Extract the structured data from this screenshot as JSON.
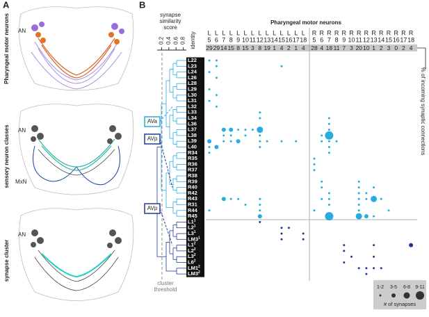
{
  "panels": {
    "a": "A",
    "b": "B"
  },
  "panel_a": {
    "titles": [
      "Pharyngeal motor neurons",
      "sensory neuron classes",
      "synapse cluster"
    ],
    "an": "AN",
    "mxn": "MxN"
  },
  "similarity": {
    "title": [
      "synapse",
      "similarity",
      "score"
    ],
    "ticks": [
      0.2,
      0.4,
      0.6,
      0.8
    ],
    "threshold": [
      "cluster",
      "threshold"
    ]
  },
  "identity": "identity",
  "header": "Pharyngeal motor neurons",
  "columns": [
    {
      "side": "L",
      "num": 5,
      "count": 29
    },
    {
      "side": "L",
      "num": 6,
      "count": 29
    },
    {
      "side": "L",
      "num": 7,
      "count": 14
    },
    {
      "side": "L",
      "num": 8,
      "count": 15
    },
    {
      "side": "L",
      "num": 9,
      "count": 8
    },
    {
      "side": "L",
      "num": 10,
      "count": 15
    },
    {
      "side": "L",
      "num": 11,
      "count": 3
    },
    {
      "side": "L",
      "num": 12,
      "count": 8
    },
    {
      "side": "L",
      "num": 13,
      "count": 19
    },
    {
      "side": "L",
      "num": 14,
      "count": 1
    },
    {
      "side": "L",
      "num": 15,
      "count": 4
    },
    {
      "side": "L",
      "num": 16,
      "count": 2
    },
    {
      "side": "L",
      "num": 17,
      "count": 1
    },
    {
      "side": "L",
      "num": 18,
      "count": 4
    },
    {
      "side": "R",
      "num": 5,
      "count": 28
    },
    {
      "side": "R",
      "num": 6,
      "count": 4
    },
    {
      "side": "R",
      "num": 7,
      "count": 18
    },
    {
      "side": "R",
      "num": 8,
      "count": 11
    },
    {
      "side": "R",
      "num": 9,
      "count": 7
    },
    {
      "side": "R",
      "num": 10,
      "count": 3
    },
    {
      "side": "R",
      "num": 11,
      "count": 20
    },
    {
      "side": "R",
      "num": 12,
      "count": 10
    },
    {
      "side": "R",
      "num": 13,
      "count": 1
    },
    {
      "side": "R",
      "num": 14,
      "count": 2
    },
    {
      "side": "R",
      "num": 15,
      "count": 3
    },
    {
      "side": "R",
      "num": 16,
      "count": 0
    },
    {
      "side": "R",
      "num": 17,
      "count": 2
    },
    {
      "side": "R",
      "num": 18,
      "count": 4
    }
  ],
  "rows": [
    {
      "label": "L22"
    },
    {
      "label": "L23"
    },
    {
      "label": "L24"
    },
    {
      "label": "L26"
    },
    {
      "label": "L28"
    },
    {
      "label": "L29"
    },
    {
      "label": "L30"
    },
    {
      "label": "L31"
    },
    {
      "label": "L32"
    },
    {
      "label": "L33"
    },
    {
      "label": "L34"
    },
    {
      "label": "L36"
    },
    {
      "label": "L37"
    },
    {
      "label": "L38"
    },
    {
      "label": "L39"
    },
    {
      "label": "L40"
    },
    {
      "label": "R34"
    },
    {
      "label": "R35"
    },
    {
      "label": "R36"
    },
    {
      "label": "R37"
    },
    {
      "label": "R38"
    },
    {
      "label": "R39"
    },
    {
      "label": "R40"
    },
    {
      "label": "R42"
    },
    {
      "label": "R43"
    },
    {
      "label": "R31"
    },
    {
      "label": "R44"
    },
    {
      "label": "R45"
    },
    {
      "label": "L1",
      "sup": "1"
    },
    {
      "label": "L2",
      "sup": "1"
    },
    {
      "label": "L3",
      "sup": "1"
    },
    {
      "label": "LM3",
      "sup": "1"
    },
    {
      "label": "L1",
      "sup": "2"
    },
    {
      "label": "L2",
      "sup": "2"
    },
    {
      "label": "L3",
      "sup": "2"
    },
    {
      "label": "L6",
      "sup": "2"
    },
    {
      "label": "LM1",
      "sup": "2"
    },
    {
      "label": "LM3",
      "sup": "2"
    }
  ],
  "clusters": [
    "AVa",
    "AVp",
    "AVp"
  ],
  "side_label": "% of incoming synaptic connections",
  "bubbles": [
    {
      "row": 0,
      "col": 0,
      "size": 1
    },
    {
      "row": 0,
      "col": 1,
      "size": 1
    },
    {
      "row": 1,
      "col": 1,
      "size": 1
    },
    {
      "row": 1,
      "col": 10,
      "size": 1
    },
    {
      "row": 2,
      "col": 0,
      "size": 1
    },
    {
      "row": 3,
      "col": 1,
      "size": 1
    },
    {
      "row": 5,
      "col": 0,
      "size": 1
    },
    {
      "row": 6,
      "col": 1,
      "size": 1
    },
    {
      "row": 7,
      "col": 0,
      "size": 1
    },
    {
      "row": 8,
      "col": 1,
      "size": 1
    },
    {
      "row": 9,
      "col": 7,
      "size": 1
    },
    {
      "row": 10,
      "col": 7,
      "size": 1
    },
    {
      "row": 10,
      "col": 16,
      "size": 1
    },
    {
      "row": 11,
      "col": 16,
      "size": 1
    },
    {
      "row": 12,
      "col": 2,
      "size": 2
    },
    {
      "row": 12,
      "col": 3,
      "size": 2
    },
    {
      "row": 12,
      "col": 4,
      "size": 1
    },
    {
      "row": 12,
      "col": 5,
      "size": 1
    },
    {
      "row": 12,
      "col": 6,
      "size": 1
    },
    {
      "row": 12,
      "col": 7,
      "size": 3
    },
    {
      "row": 12,
      "col": 16,
      "size": 1
    },
    {
      "row": 13,
      "col": 2,
      "size": 1
    },
    {
      "row": 13,
      "col": 3,
      "size": 1
    },
    {
      "row": 13,
      "col": 5,
      "size": 1
    },
    {
      "row": 13,
      "col": 7,
      "size": 1
    },
    {
      "row": 13,
      "col": 15,
      "size": 1
    },
    {
      "row": 13,
      "col": 16,
      "size": 4
    },
    {
      "row": 14,
      "col": 0,
      "size": 2
    },
    {
      "row": 14,
      "col": 2,
      "size": 1
    },
    {
      "row": 14,
      "col": 3,
      "size": 1
    },
    {
      "row": 14,
      "col": 4,
      "size": 2
    },
    {
      "row": 14,
      "col": 7,
      "size": 1
    },
    {
      "row": 14,
      "col": 8,
      "size": 1
    },
    {
      "row": 14,
      "col": 10,
      "size": 1
    },
    {
      "row": 14,
      "col": 12,
      "size": 1
    },
    {
      "row": 14,
      "col": 15,
      "size": 1
    },
    {
      "row": 14,
      "col": 16,
      "size": 1
    },
    {
      "row": 14,
      "col": 17,
      "size": 1
    },
    {
      "row": 15,
      "col": 0,
      "size": 1
    },
    {
      "row": 15,
      "col": 1,
      "size": 2
    },
    {
      "row": 15,
      "col": 7,
      "size": 1
    },
    {
      "row": 15,
      "col": 16,
      "size": 1
    },
    {
      "row": 16,
      "col": 0,
      "size": 1
    },
    {
      "row": 16,
      "col": 16,
      "size": 1
    },
    {
      "row": 17,
      "col": 14,
      "size": 1
    },
    {
      "row": 18,
      "col": 14,
      "size": 1
    },
    {
      "row": 19,
      "col": 14,
      "size": 1
    },
    {
      "row": 21,
      "col": 15,
      "size": 1
    },
    {
      "row": 21,
      "col": 20,
      "size": 1
    },
    {
      "row": 22,
      "col": 15,
      "size": 1
    },
    {
      "row": 22,
      "col": 20,
      "size": 1
    },
    {
      "row": 22,
      "col": 22,
      "size": 1
    },
    {
      "row": 23,
      "col": 16,
      "size": 1
    },
    {
      "row": 23,
      "col": 20,
      "size": 1
    },
    {
      "row": 23,
      "col": 21,
      "size": 1
    },
    {
      "row": 24,
      "col": 2,
      "size": 2
    },
    {
      "row": 24,
      "col": 3,
      "size": 1
    },
    {
      "row": 24,
      "col": 4,
      "size": 1
    },
    {
      "row": 24,
      "col": 7,
      "size": 1
    },
    {
      "row": 24,
      "col": 15,
      "size": 1
    },
    {
      "row": 24,
      "col": 16,
      "size": 1
    },
    {
      "row": 24,
      "col": 20,
      "size": 1
    },
    {
      "row": 24,
      "col": 21,
      "size": 1
    },
    {
      "row": 24,
      "col": 22,
      "size": 3
    },
    {
      "row": 24,
      "col": 23,
      "size": 1
    },
    {
      "row": 25,
      "col": 5,
      "size": 1
    },
    {
      "row": 25,
      "col": 7,
      "size": 1
    },
    {
      "row": 25,
      "col": 16,
      "size": 1
    },
    {
      "row": 25,
      "col": 20,
      "size": 1
    },
    {
      "row": 26,
      "col": 0,
      "size": 1
    },
    {
      "row": 26,
      "col": 7,
      "size": 1
    },
    {
      "row": 26,
      "col": 14,
      "size": 1
    },
    {
      "row": 26,
      "col": 20,
      "size": 1
    },
    {
      "row": 26,
      "col": 24,
      "size": 1
    },
    {
      "row": 27,
      "col": 7,
      "size": 2
    },
    {
      "row": 27,
      "col": 16,
      "size": 4
    },
    {
      "row": 27,
      "col": 20,
      "size": 3
    },
    {
      "row": 27,
      "col": 21,
      "size": 2
    },
    {
      "row": 27,
      "col": 22,
      "size": 1
    },
    {
      "row": 28,
      "col": 7,
      "size": 1
    },
    {
      "row": 29,
      "col": 10,
      "size": 1
    },
    {
      "row": 29,
      "col": 11,
      "size": 1
    },
    {
      "row": 30,
      "col": 10,
      "size": 1
    },
    {
      "row": 30,
      "col": 13,
      "size": 1
    },
    {
      "row": 31,
      "col": 10,
      "size": 1
    },
    {
      "row": 31,
      "col": 13,
      "size": 1
    },
    {
      "row": 32,
      "col": 18,
      "size": 1
    },
    {
      "row": 32,
      "col": 22,
      "size": 1
    },
    {
      "row": 32,
      "col": 27,
      "size": 2
    },
    {
      "row": 33,
      "col": 18,
      "size": 1
    },
    {
      "row": 34,
      "col": 19,
      "size": 1
    },
    {
      "row": 34,
      "col": 22,
      "size": 1
    },
    {
      "row": 35,
      "col": 18,
      "size": 1
    },
    {
      "row": 36,
      "col": 20,
      "size": 1
    },
    {
      "row": 36,
      "col": 21,
      "size": 1
    },
    {
      "row": 36,
      "col": 22,
      "size": 1
    },
    {
      "row": 36,
      "col": 23,
      "size": 1
    },
    {
      "row": 37,
      "col": 21,
      "size": 1
    }
  ],
  "legend": {
    "labels": [
      "1-2",
      "3-5",
      "6-8",
      "9-11"
    ],
    "title": "# of synapses"
  }
}
